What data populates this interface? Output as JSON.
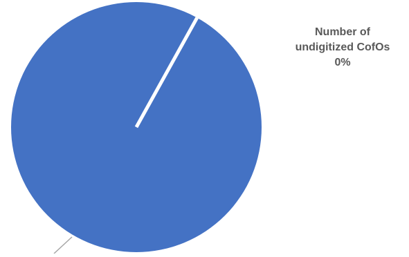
{
  "chart_data": {
    "type": "pie",
    "categories": [
      "Number of undigitized CofOs",
      ""
    ],
    "values": [
      0,
      100
    ],
    "data_labels": [
      {
        "category_line1": "Number of",
        "category_line2": "undigitized CofOs",
        "percent": "0%"
      }
    ],
    "colors": {
      "slice": "#4472C4",
      "separator": "#ffffff",
      "leader_line": "#a6a6a6"
    }
  }
}
